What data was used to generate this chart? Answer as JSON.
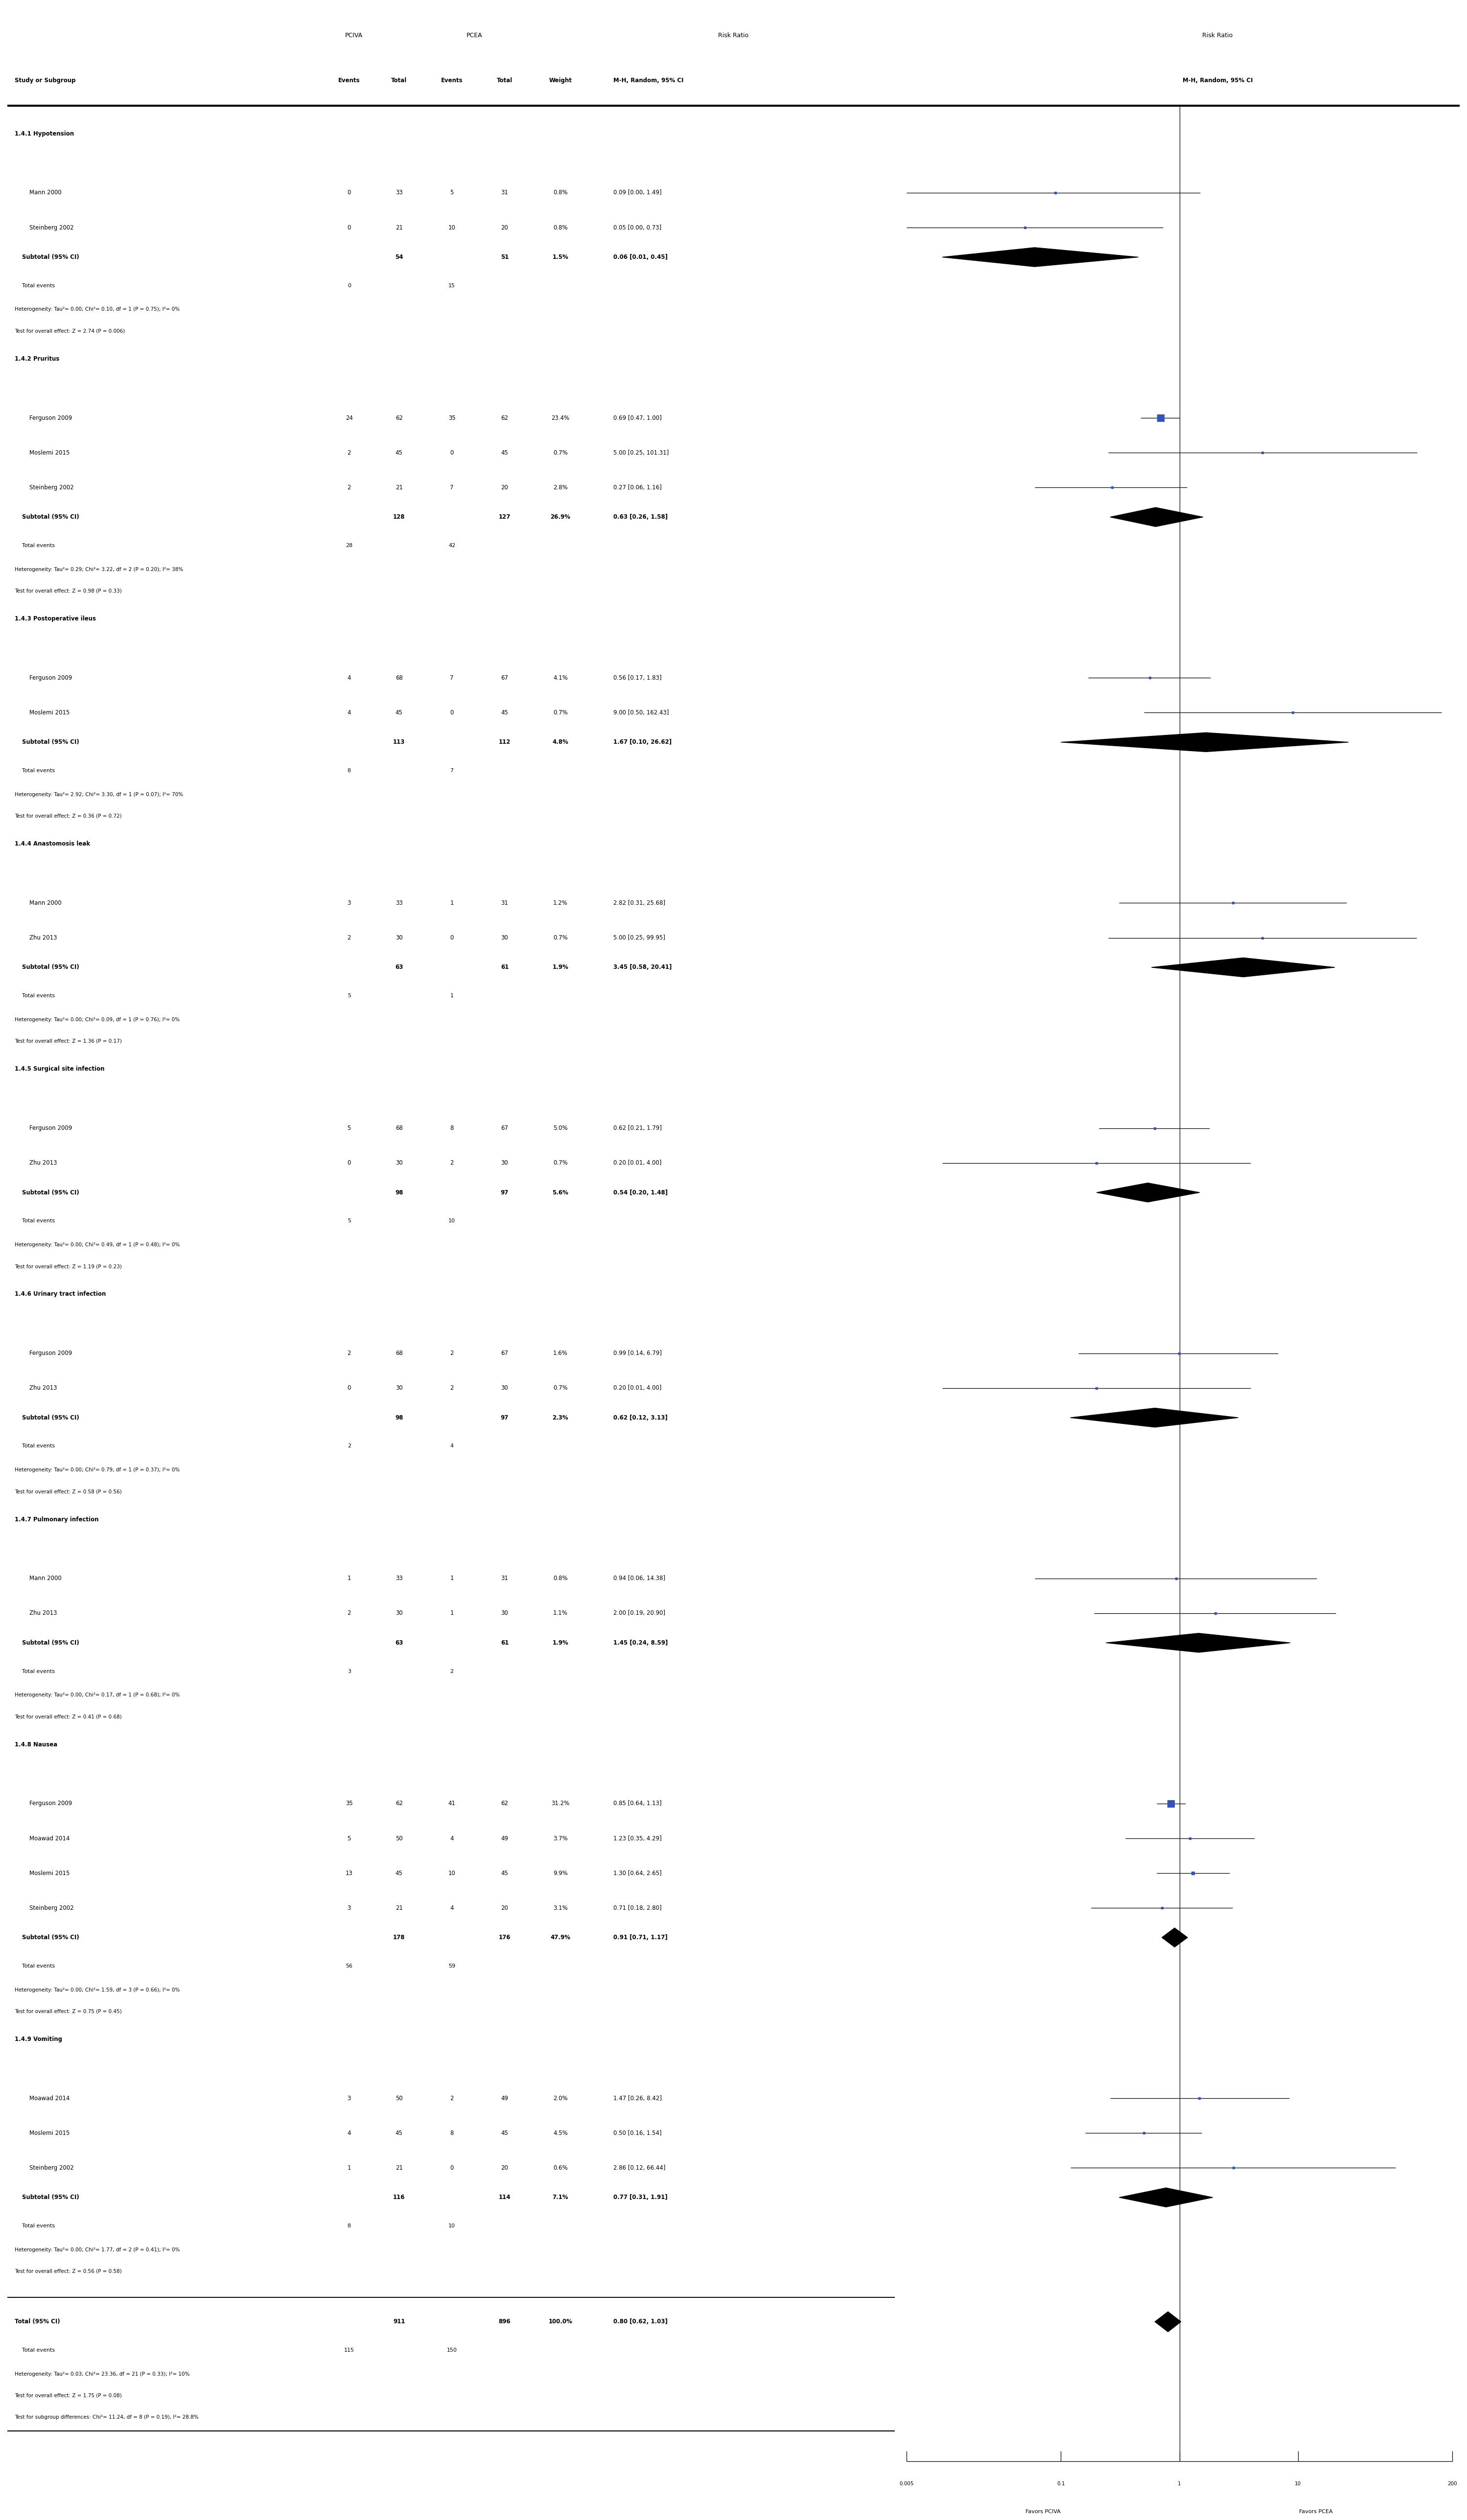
{
  "sections": [
    {
      "name": "1.4.1 Hypotension",
      "studies": [
        {
          "study": "Mann 2000",
          "ev1": 0,
          "tot1": 33,
          "ev2": 5,
          "tot2": 31,
          "weight": "0.8%",
          "rr": 0.09,
          "lo": 0.005,
          "hi": 1.49,
          "rr_str": "0.09 [0.00, 1.49]"
        },
        {
          "study": "Steinberg 2002",
          "ev1": 0,
          "tot1": 21,
          "ev2": 10,
          "tot2": 20,
          "weight": "0.8%",
          "rr": 0.05,
          "lo": 0.005,
          "hi": 0.73,
          "rr_str": "0.05 [0.00, 0.73]"
        }
      ],
      "subtotal": {
        "tot1": 54,
        "tot2": 51,
        "weight": "1.5%",
        "rr": 0.06,
        "lo": 0.01,
        "hi": 0.45,
        "rr_str": "0.06 [0.01, 0.45]"
      },
      "total_events": {
        "ev1": 0,
        "ev2": 15
      },
      "heterogeneity": "Heterogeneity: Tau²= 0.00; Chi²= 0.10, df = 1 (P = 0.75); I²= 0%",
      "overall": "Test for overall effect: Z = 2.74 (P = 0.006)"
    },
    {
      "name": "1.4.2 Pruritus",
      "studies": [
        {
          "study": "Ferguson 2009",
          "ev1": 24,
          "tot1": 62,
          "ev2": 35,
          "tot2": 62,
          "weight": "23.4%",
          "rr": 0.69,
          "lo": 0.47,
          "hi": 1.0,
          "rr_str": "0.69 [0.47, 1.00]"
        },
        {
          "study": "Moslemi 2015",
          "ev1": 2,
          "tot1": 45,
          "ev2": 0,
          "tot2": 45,
          "weight": "0.7%",
          "rr": 5.0,
          "lo": 0.25,
          "hi": 101.31,
          "rr_str": "5.00 [0.25, 101.31]"
        },
        {
          "study": "Steinberg 2002",
          "ev1": 2,
          "tot1": 21,
          "ev2": 7,
          "tot2": 20,
          "weight": "2.8%",
          "rr": 0.27,
          "lo": 0.06,
          "hi": 1.16,
          "rr_str": "0.27 [0.06, 1.16]"
        }
      ],
      "subtotal": {
        "tot1": 128,
        "tot2": 127,
        "weight": "26.9%",
        "rr": 0.63,
        "lo": 0.26,
        "hi": 1.58,
        "rr_str": "0.63 [0.26, 1.58]"
      },
      "total_events": {
        "ev1": 28,
        "ev2": 42
      },
      "heterogeneity": "Heterogeneity: Tau²= 0.29; Chi²= 3.22, df = 2 (P = 0.20); I²= 38%",
      "overall": "Test for overall effect: Z = 0.98 (P = 0.33)"
    },
    {
      "name": "1.4.3 Postoperative ileus",
      "studies": [
        {
          "study": "Ferguson 2009",
          "ev1": 4,
          "tot1": 68,
          "ev2": 7,
          "tot2": 67,
          "weight": "4.1%",
          "rr": 0.56,
          "lo": 0.17,
          "hi": 1.83,
          "rr_str": "0.56 [0.17, 1.83]"
        },
        {
          "study": "Moslemi 2015",
          "ev1": 4,
          "tot1": 45,
          "ev2": 0,
          "tot2": 45,
          "weight": "0.7%",
          "rr": 9.0,
          "lo": 0.5,
          "hi": 162.43,
          "rr_str": "9.00 [0.50, 162.43]"
        }
      ],
      "subtotal": {
        "tot1": 113,
        "tot2": 112,
        "weight": "4.8%",
        "rr": 1.67,
        "lo": 0.1,
        "hi": 26.62,
        "rr_str": "1.67 [0.10, 26.62]"
      },
      "total_events": {
        "ev1": 8,
        "ev2": 7
      },
      "heterogeneity": "Heterogeneity: Tau²= 2.92; Chi²= 3.30, df = 1 (P = 0.07); I²= 70%",
      "overall": "Test for overall effect: Z = 0.36 (P = 0.72)"
    },
    {
      "name": "1.4.4 Anastomosis leak",
      "studies": [
        {
          "study": "Mann 2000",
          "ev1": 3,
          "tot1": 33,
          "ev2": 1,
          "tot2": 31,
          "weight": "1.2%",
          "rr": 2.82,
          "lo": 0.31,
          "hi": 25.68,
          "rr_str": "2.82 [0.31, 25.68]"
        },
        {
          "study": "Zhu 2013",
          "ev1": 2,
          "tot1": 30,
          "ev2": 0,
          "tot2": 30,
          "weight": "0.7%",
          "rr": 5.0,
          "lo": 0.25,
          "hi": 99.95,
          "rr_str": "5.00 [0.25, 99.95]"
        }
      ],
      "subtotal": {
        "tot1": 63,
        "tot2": 61,
        "weight": "1.9%",
        "rr": 3.45,
        "lo": 0.58,
        "hi": 20.41,
        "rr_str": "3.45 [0.58, 20.41]"
      },
      "total_events": {
        "ev1": 5,
        "ev2": 1
      },
      "heterogeneity": "Heterogeneity: Tau²= 0.00; Chi²= 0.09, df = 1 (P = 0.76); I²= 0%",
      "overall": "Test for overall effect: Z = 1.36 (P = 0.17)"
    },
    {
      "name": "1.4.5 Surgical site infection",
      "studies": [
        {
          "study": "Ferguson 2009",
          "ev1": 5,
          "tot1": 68,
          "ev2": 8,
          "tot2": 67,
          "weight": "5.0%",
          "rr": 0.62,
          "lo": 0.21,
          "hi": 1.79,
          "rr_str": "0.62 [0.21, 1.79]"
        },
        {
          "study": "Zhu 2013",
          "ev1": 0,
          "tot1": 30,
          "ev2": 2,
          "tot2": 30,
          "weight": "0.7%",
          "rr": 0.2,
          "lo": 0.01,
          "hi": 4.0,
          "rr_str": "0.20 [0.01, 4.00]"
        }
      ],
      "subtotal": {
        "tot1": 98,
        "tot2": 97,
        "weight": "5.6%",
        "rr": 0.54,
        "lo": 0.2,
        "hi": 1.48,
        "rr_str": "0.54 [0.20, 1.48]"
      },
      "total_events": {
        "ev1": 5,
        "ev2": 10
      },
      "heterogeneity": "Heterogeneity: Tau²= 0.00; Chi²= 0.49, df = 1 (P = 0.48); I²= 0%",
      "overall": "Test for overall effect: Z = 1.19 (P = 0.23)"
    },
    {
      "name": "1.4.6 Urinary tract infection",
      "studies": [
        {
          "study": "Ferguson 2009",
          "ev1": 2,
          "tot1": 68,
          "ev2": 2,
          "tot2": 67,
          "weight": "1.6%",
          "rr": 0.99,
          "lo": 0.14,
          "hi": 6.79,
          "rr_str": "0.99 [0.14, 6.79]"
        },
        {
          "study": "Zhu 2013",
          "ev1": 0,
          "tot1": 30,
          "ev2": 2,
          "tot2": 30,
          "weight": "0.7%",
          "rr": 0.2,
          "lo": 0.01,
          "hi": 4.0,
          "rr_str": "0.20 [0.01, 4.00]"
        }
      ],
      "subtotal": {
        "tot1": 98,
        "tot2": 97,
        "weight": "2.3%",
        "rr": 0.62,
        "lo": 0.12,
        "hi": 3.13,
        "rr_str": "0.62 [0.12, 3.13]"
      },
      "total_events": {
        "ev1": 2,
        "ev2": 4
      },
      "heterogeneity": "Heterogeneity: Tau²= 0.00; Chi²= 0.79, df = 1 (P = 0.37); I²= 0%",
      "overall": "Test for overall effect: Z = 0.58 (P = 0.56)"
    },
    {
      "name": "1.4.7 Pulmonary infection",
      "studies": [
        {
          "study": "Mann 2000",
          "ev1": 1,
          "tot1": 33,
          "ev2": 1,
          "tot2": 31,
          "weight": "0.8%",
          "rr": 0.94,
          "lo": 0.06,
          "hi": 14.38,
          "rr_str": "0.94 [0.06, 14.38]"
        },
        {
          "study": "Zhu 2013",
          "ev1": 2,
          "tot1": 30,
          "ev2": 1,
          "tot2": 30,
          "weight": "1.1%",
          "rr": 2.0,
          "lo": 0.19,
          "hi": 20.9,
          "rr_str": "2.00 [0.19, 20.90]"
        }
      ],
      "subtotal": {
        "tot1": 63,
        "tot2": 61,
        "weight": "1.9%",
        "rr": 1.45,
        "lo": 0.24,
        "hi": 8.59,
        "rr_str": "1.45 [0.24, 8.59]"
      },
      "total_events": {
        "ev1": 3,
        "ev2": 2
      },
      "heterogeneity": "Heterogeneity: Tau²= 0.00; Chi²= 0.17, df = 1 (P = 0.68); I²= 0%",
      "overall": "Test for overall effect: Z = 0.41 (P = 0.68)"
    },
    {
      "name": "1.4.8 Nausea",
      "studies": [
        {
          "study": "Ferguson 2009",
          "ev1": 35,
          "tot1": 62,
          "ev2": 41,
          "tot2": 62,
          "weight": "31.2%",
          "rr": 0.85,
          "lo": 0.64,
          "hi": 1.13,
          "rr_str": "0.85 [0.64, 1.13]"
        },
        {
          "study": "Moawad 2014",
          "ev1": 5,
          "tot1": 50,
          "ev2": 4,
          "tot2": 49,
          "weight": "3.7%",
          "rr": 1.23,
          "lo": 0.35,
          "hi": 4.29,
          "rr_str": "1.23 [0.35, 4.29]"
        },
        {
          "study": "Moslemi 2015",
          "ev1": 13,
          "tot1": 45,
          "ev2": 10,
          "tot2": 45,
          "weight": "9.9%",
          "rr": 1.3,
          "lo": 0.64,
          "hi": 2.65,
          "rr_str": "1.30 [0.64, 2.65]"
        },
        {
          "study": "Steinberg 2002",
          "ev1": 3,
          "tot1": 21,
          "ev2": 4,
          "tot2": 20,
          "weight": "3.1%",
          "rr": 0.71,
          "lo": 0.18,
          "hi": 2.8,
          "rr_str": "0.71 [0.18, 2.80]"
        }
      ],
      "subtotal": {
        "tot1": 178,
        "tot2": 176,
        "weight": "47.9%",
        "rr": 0.91,
        "lo": 0.71,
        "hi": 1.17,
        "rr_str": "0.91 [0.71, 1.17]"
      },
      "total_events": {
        "ev1": 56,
        "ev2": 59
      },
      "heterogeneity": "Heterogeneity: Tau²= 0.00; Chi²= 1.59, df = 3 (P = 0.66); I²= 0%",
      "overall": "Test for overall effect: Z = 0.75 (P = 0.45)"
    },
    {
      "name": "1.4.9 Vomiting",
      "studies": [
        {
          "study": "Moawad 2014",
          "ev1": 3,
          "tot1": 50,
          "ev2": 2,
          "tot2": 49,
          "weight": "2.0%",
          "rr": 1.47,
          "lo": 0.26,
          "hi": 8.42,
          "rr_str": "1.47 [0.26, 8.42]"
        },
        {
          "study": "Moslemi 2015",
          "ev1": 4,
          "tot1": 45,
          "ev2": 8,
          "tot2": 45,
          "weight": "4.5%",
          "rr": 0.5,
          "lo": 0.16,
          "hi": 1.54,
          "rr_str": "0.50 [0.16, 1.54]"
        },
        {
          "study": "Steinberg 2002",
          "ev1": 1,
          "tot1": 21,
          "ev2": 0,
          "tot2": 20,
          "weight": "0.6%",
          "rr": 2.86,
          "lo": 0.12,
          "hi": 66.44,
          "rr_str": "2.86 [0.12, 66.44]"
        }
      ],
      "subtotal": {
        "tot1": 116,
        "tot2": 114,
        "weight": "7.1%",
        "rr": 0.77,
        "lo": 0.31,
        "hi": 1.91,
        "rr_str": "0.77 [0.31, 1.91]"
      },
      "total_events": {
        "ev1": 8,
        "ev2": 10
      },
      "heterogeneity": "Heterogeneity: Tau²= 0.00; Chi²= 1.77, df = 2 (P = 0.41); I²= 0%",
      "overall": "Test for overall effect: Z = 0.56 (P = 0.58)"
    }
  ],
  "total": {
    "tot1": 911,
    "tot2": 896,
    "weight": "100.0%",
    "rr": 0.8,
    "lo": 0.62,
    "hi": 1.03,
    "rr_str": "0.80 [0.62, 1.03]",
    "ev1": 115,
    "ev2": 150
  },
  "total_heterogeneity": "Heterogeneity: Tau²= 0.03; Chi²= 23.36, df = 21 (P = 0.33); I²= 10%",
  "total_overall": "Test for overall effect: Z = 1.75 (P = 0.08)",
  "subgroup_diff": "Test for subgroup differences: Chi²= 11.24, df = 8 (P = 0.19), I²= 28.8%",
  "xmin": 0.005,
  "xmax": 200,
  "x_ticks": [
    0.005,
    0.1,
    1,
    10,
    200
  ],
  "x_tick_labels": [
    "0.005",
    "0.1",
    "1",
    "10",
    "200"
  ],
  "xlabel_left": "Favors PCIVA",
  "xlabel_right": "Favors PCEA"
}
